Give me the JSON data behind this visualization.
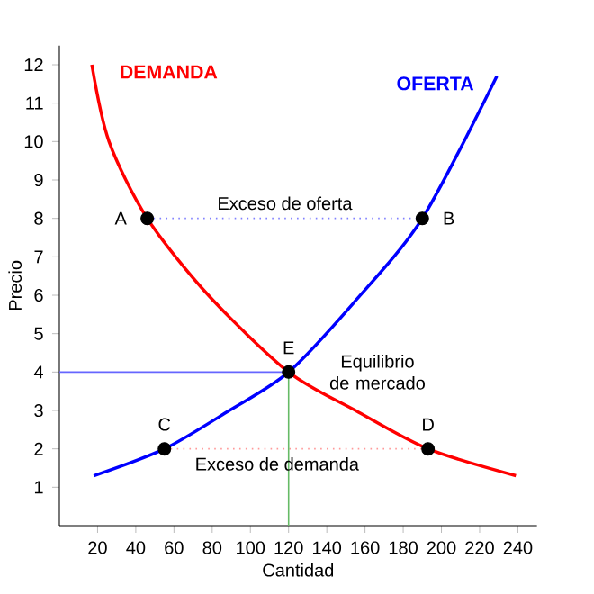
{
  "chart_data": {
    "type": "line",
    "xlabel": "Cantidad",
    "ylabel": "Precio",
    "xlim": [
      0,
      250
    ],
    "ylim": [
      0,
      12.5
    ],
    "xticks": [
      20,
      40,
      60,
      80,
      100,
      120,
      140,
      160,
      180,
      200,
      220,
      240
    ],
    "yticks": [
      1,
      2,
      3,
      4,
      5,
      6,
      7,
      8,
      9,
      10,
      11,
      12
    ],
    "grid": false,
    "series": [
      {
        "name": "DEMANDA",
        "color": "#ff0000",
        "x": [
          17,
          26,
          46,
          78,
          120,
          155,
          193,
          239
        ],
        "values": [
          12,
          10,
          8,
          6,
          4,
          3,
          2,
          1.3
        ]
      },
      {
        "name": "OFERTA",
        "color": "#0000ff",
        "x": [
          18,
          55,
          89,
          120,
          154,
          190,
          229
        ],
        "values": [
          1.3,
          2,
          3,
          4,
          5.8,
          8,
          11.7
        ]
      },
      {
        "color": "#8080ff",
        "line_style": "dotted",
        "x": [
          46,
          190
        ],
        "values": [
          8,
          8
        ]
      },
      {
        "color": "#ff9999",
        "line_style": "dotted",
        "x": [
          55,
          193
        ],
        "values": [
          2,
          2
        ]
      },
      {
        "color": "#6666ff",
        "x": [
          0,
          120
        ],
        "values": [
          4,
          4
        ]
      },
      {
        "color": "#66bb66",
        "x": [
          120,
          120
        ],
        "values": [
          0,
          4
        ]
      },
      {
        "type": "scatter",
        "marker": "circle",
        "color": "#000000",
        "x": [
          46,
          190,
          55,
          193,
          120
        ],
        "values": [
          8,
          8,
          2,
          2,
          4
        ]
      }
    ],
    "annotations": [
      {
        "text": "A",
        "x": 46,
        "y": 8
      },
      {
        "text": "B",
        "x": 190,
        "y": 8
      },
      {
        "text": "C",
        "x": 55,
        "y": 2
      },
      {
        "text": "D",
        "x": 193,
        "y": 2
      },
      {
        "text": "E",
        "x": 120,
        "y": 4
      },
      "Exceso de oferta",
      "Exceso de demanda",
      "Equilibrio de mercado"
    ]
  }
}
